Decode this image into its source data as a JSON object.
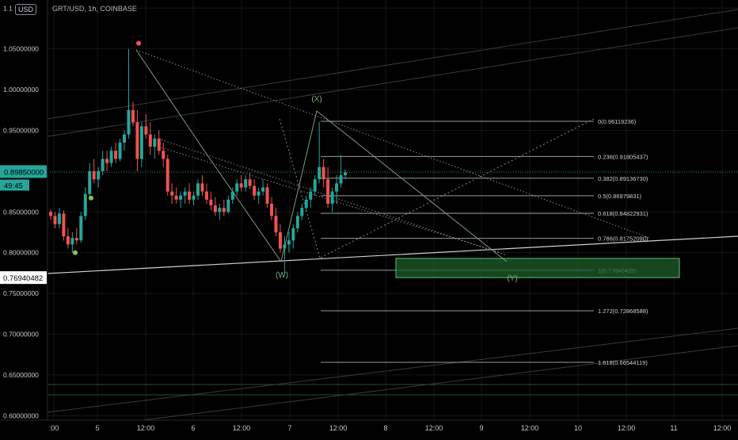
{
  "header": {
    "symbol_info": "GRT/USD, 1h, COINBASE",
    "currency_button": "USD"
  },
  "colors": {
    "up": "#26a69a",
    "down": "#ef5350",
    "price_tag": "#26a69a",
    "zone_fill": "#1e5e2a",
    "zone_border": "#5fbf6a",
    "fib_line": "#9a9a9a",
    "wave_line": "#6a8f6a",
    "wave_label": "#7cb37c"
  },
  "chart_data": {
    "type": "candlestick",
    "title": "GRT/USD, 1h, COINBASE",
    "y_axis": {
      "range": [
        0.575,
        1.11
      ],
      "tick_labels": [
        "1.1",
        "1.05000000",
        "1.00000000",
        "0.95000000",
        "0.90000000",
        "0.85000000",
        "0.80000000",
        "0.75000000",
        "0.70000000",
        "0.65000000",
        "0.60000000"
      ],
      "tick_values": [
        1.1,
        1.05,
        1.0,
        0.95,
        0.9,
        0.85,
        0.8,
        0.75,
        0.7,
        0.65,
        0.6
      ]
    },
    "x_axis": {
      "tick_labels": [
        ":00",
        "5",
        "12:00",
        "6",
        "12:00",
        "7",
        "12:00",
        "8",
        "12:00",
        "9",
        "12:00",
        "10",
        "12:00",
        "11",
        "12:00"
      ]
    },
    "grid": true,
    "current_price": {
      "label": "0.89850000",
      "value": 0.8985,
      "countdown": "49:45"
    },
    "marked_price": {
      "label": "0.76940482",
      "value": 0.7694
    },
    "candles": [
      {
        "o": 0.85,
        "h": 0.853,
        "l": 0.84,
        "c": 0.845
      },
      {
        "o": 0.845,
        "h": 0.85,
        "l": 0.83,
        "c": 0.835
      },
      {
        "o": 0.835,
        "h": 0.855,
        "l": 0.83,
        "c": 0.848
      },
      {
        "o": 0.848,
        "h": 0.852,
        "l": 0.815,
        "c": 0.82
      },
      {
        "o": 0.82,
        "h": 0.83,
        "l": 0.805,
        "c": 0.81
      },
      {
        "o": 0.81,
        "h": 0.825,
        "l": 0.8,
        "c": 0.818
      },
      {
        "o": 0.818,
        "h": 0.83,
        "l": 0.81,
        "c": 0.815
      },
      {
        "o": 0.815,
        "h": 0.85,
        "l": 0.812,
        "c": 0.845
      },
      {
        "o": 0.845,
        "h": 0.88,
        "l": 0.84,
        "c": 0.872
      },
      {
        "o": 0.872,
        "h": 0.91,
        "l": 0.868,
        "c": 0.9
      },
      {
        "o": 0.9,
        "h": 0.915,
        "l": 0.885,
        "c": 0.89
      },
      {
        "o": 0.89,
        "h": 0.905,
        "l": 0.88,
        "c": 0.9
      },
      {
        "o": 0.9,
        "h": 0.925,
        "l": 0.895,
        "c": 0.915
      },
      {
        "o": 0.915,
        "h": 0.925,
        "l": 0.9,
        "c": 0.91
      },
      {
        "o": 0.91,
        "h": 0.93,
        "l": 0.905,
        "c": 0.925
      },
      {
        "o": 0.925,
        "h": 0.935,
        "l": 0.91,
        "c": 0.915
      },
      {
        "o": 0.915,
        "h": 0.94,
        "l": 0.912,
        "c": 0.935
      },
      {
        "o": 0.935,
        "h": 0.95,
        "l": 0.925,
        "c": 0.945
      },
      {
        "o": 0.945,
        "h": 1.05,
        "l": 0.94,
        "c": 0.975
      },
      {
        "o": 0.975,
        "h": 0.985,
        "l": 0.955,
        "c": 0.96
      },
      {
        "o": 0.96,
        "h": 0.975,
        "l": 0.9,
        "c": 0.915
      },
      {
        "o": 0.915,
        "h": 0.96,
        "l": 0.905,
        "c": 0.955
      },
      {
        "o": 0.955,
        "h": 0.97,
        "l": 0.94,
        "c": 0.945
      },
      {
        "o": 0.945,
        "h": 0.96,
        "l": 0.92,
        "c": 0.93
      },
      {
        "o": 0.93,
        "h": 0.945,
        "l": 0.915,
        "c": 0.94
      },
      {
        "o": 0.94,
        "h": 0.95,
        "l": 0.92,
        "c": 0.925
      },
      {
        "o": 0.925,
        "h": 0.935,
        "l": 0.905,
        "c": 0.915
      },
      {
        "o": 0.915,
        "h": 0.92,
        "l": 0.87,
        "c": 0.875
      },
      {
        "o": 0.875,
        "h": 0.885,
        "l": 0.86,
        "c": 0.87
      },
      {
        "o": 0.87,
        "h": 0.88,
        "l": 0.86,
        "c": 0.865
      },
      {
        "o": 0.865,
        "h": 0.875,
        "l": 0.855,
        "c": 0.87
      },
      {
        "o": 0.87,
        "h": 0.88,
        "l": 0.86,
        "c": 0.875
      },
      {
        "o": 0.875,
        "h": 0.885,
        "l": 0.86,
        "c": 0.865
      },
      {
        "o": 0.865,
        "h": 0.875,
        "l": 0.858,
        "c": 0.87
      },
      {
        "o": 0.87,
        "h": 0.89,
        "l": 0.865,
        "c": 0.885
      },
      {
        "o": 0.885,
        "h": 0.895,
        "l": 0.87,
        "c": 0.875
      },
      {
        "o": 0.875,
        "h": 0.885,
        "l": 0.86,
        "c": 0.865
      },
      {
        "o": 0.865,
        "h": 0.875,
        "l": 0.852,
        "c": 0.858
      },
      {
        "o": 0.858,
        "h": 0.868,
        "l": 0.845,
        "c": 0.85
      },
      {
        "o": 0.85,
        "h": 0.86,
        "l": 0.84,
        "c": 0.855
      },
      {
        "o": 0.855,
        "h": 0.865,
        "l": 0.845,
        "c": 0.85
      },
      {
        "o": 0.85,
        "h": 0.87,
        "l": 0.848,
        "c": 0.865
      },
      {
        "o": 0.865,
        "h": 0.88,
        "l": 0.86,
        "c": 0.875
      },
      {
        "o": 0.875,
        "h": 0.89,
        "l": 0.87,
        "c": 0.885
      },
      {
        "o": 0.885,
        "h": 0.895,
        "l": 0.875,
        "c": 0.88
      },
      {
        "o": 0.88,
        "h": 0.895,
        "l": 0.875,
        "c": 0.89
      },
      {
        "o": 0.89,
        "h": 0.898,
        "l": 0.878,
        "c": 0.882
      },
      {
        "o": 0.882,
        "h": 0.89,
        "l": 0.865,
        "c": 0.87
      },
      {
        "o": 0.87,
        "h": 0.88,
        "l": 0.86,
        "c": 0.875
      },
      {
        "o": 0.875,
        "h": 0.89,
        "l": 0.87,
        "c": 0.88
      },
      {
        "o": 0.88,
        "h": 0.885,
        "l": 0.855,
        "c": 0.86
      },
      {
        "o": 0.86,
        "h": 0.868,
        "l": 0.84,
        "c": 0.845
      },
      {
        "o": 0.845,
        "h": 0.855,
        "l": 0.82,
        "c": 0.825
      },
      {
        "o": 0.825,
        "h": 0.835,
        "l": 0.8,
        "c": 0.805
      },
      {
        "o": 0.805,
        "h": 0.82,
        "l": 0.775,
        "c": 0.81
      },
      {
        "o": 0.81,
        "h": 0.825,
        "l": 0.8,
        "c": 0.815
      },
      {
        "o": 0.815,
        "h": 0.835,
        "l": 0.805,
        "c": 0.83
      },
      {
        "o": 0.83,
        "h": 0.85,
        "l": 0.825,
        "c": 0.845
      },
      {
        "o": 0.845,
        "h": 0.86,
        "l": 0.84,
        "c": 0.855
      },
      {
        "o": 0.855,
        "h": 0.87,
        "l": 0.85,
        "c": 0.865
      },
      {
        "o": 0.865,
        "h": 0.88,
        "l": 0.855,
        "c": 0.875
      },
      {
        "o": 0.875,
        "h": 0.895,
        "l": 0.87,
        "c": 0.89
      },
      {
        "o": 0.89,
        "h": 0.96,
        "l": 0.885,
        "c": 0.905
      },
      {
        "o": 0.905,
        "h": 0.915,
        "l": 0.88,
        "c": 0.89
      },
      {
        "o": 0.89,
        "h": 0.905,
        "l": 0.855,
        "c": 0.86
      },
      {
        "o": 0.86,
        "h": 0.88,
        "l": 0.85,
        "c": 0.875
      },
      {
        "o": 0.875,
        "h": 0.895,
        "l": 0.86,
        "c": 0.885
      },
      {
        "o": 0.885,
        "h": 0.92,
        "l": 0.88,
        "c": 0.895
      },
      {
        "o": 0.895,
        "h": 0.902,
        "l": 0.89,
        "c": 0.8985
      }
    ],
    "fibonacci_levels": [
      {
        "label": "0(0.96119236)",
        "value": 0.96119
      },
      {
        "label": "0.236(0.91805437)",
        "value": 0.91805
      },
      {
        "label": "0.382(0.89136730)",
        "value": 0.89137
      },
      {
        "label": "0.5(0.86979831)",
        "value": 0.8698
      },
      {
        "label": "0.618(0.84822931)",
        "value": 0.84823
      },
      {
        "label": "0.786(0.81752090)",
        "value": 0.81752
      },
      {
        "label": "1(0.77840425)",
        "value": 0.7784
      },
      {
        "label": "1.272(0.72868588)",
        "value": 0.72869
      },
      {
        "label": "1.618(0.66544119)",
        "value": 0.66544
      }
    ],
    "target_zone": {
      "from": 0.7694,
      "to": 0.793
    },
    "wave_labels": [
      {
        "label": "(X)",
        "price": 0.97
      },
      {
        "label": "(W)",
        "price": 0.762
      },
      {
        "label": "(Y)",
        "price": 0.758
      }
    ],
    "markers": [
      {
        "color": "#ef5350",
        "price": 1.057
      },
      {
        "color": "#8bc34a",
        "price": 0.867
      },
      {
        "color": "#8bc34a",
        "price": 0.8
      }
    ]
  }
}
